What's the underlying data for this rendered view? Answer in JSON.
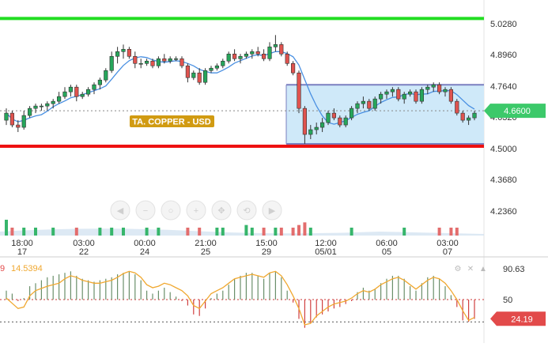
{
  "chart_data": {
    "type": "candlestick",
    "instrument_label": "TA. COPPER - USD",
    "colors": {
      "up": "#26a65b",
      "down": "#e0534f",
      "resistance_line": "#22dd22",
      "support_line": "#ee1111",
      "range_fill": "#cfe9f9",
      "range_border": "#7a7fc0",
      "ma_line": "#4a90e2",
      "label_bg": "#d19b12",
      "price_badge": "#3cc96a",
      "osc_line": "#f0a830",
      "osc_badge": "#e24a4a",
      "osc_up_bar": "#6a8f6a",
      "osc_down_bar": "#d04040"
    },
    "price_axis": {
      "ticks": [
        "5.0280",
        "4.8960",
        "4.7640",
        "4.6320",
        "4.5000",
        "4.3680",
        "4.2360"
      ],
      "tick_values": [
        5.028,
        4.896,
        4.764,
        4.632,
        4.5,
        4.368,
        4.236
      ],
      "current_price": "4.6600",
      "current_value": 4.66
    },
    "time_axis": [
      {
        "time": "18:00",
        "date": "17"
      },
      {
        "time": "03:00",
        "date": "22"
      },
      {
        "time": "00:00",
        "date": "24"
      },
      {
        "time": "21:00",
        "date": "25"
      },
      {
        "time": "15:00",
        "date": "29"
      },
      {
        "time": "12:00",
        "date": "05/01"
      },
      {
        "time": "06:00",
        "date": "05"
      },
      {
        "time": "03:00",
        "date": "07"
      }
    ],
    "horizontal_levels": {
      "resistance": 5.05,
      "support": 4.51
    },
    "range_box": {
      "top": 4.77,
      "bottom": 4.52
    },
    "ohlc": [
      [
        4.62,
        4.67,
        4.6,
        4.65
      ],
      [
        4.65,
        4.66,
        4.59,
        4.6
      ],
      [
        4.6,
        4.62,
        4.57,
        4.59
      ],
      [
        4.59,
        4.66,
        4.58,
        4.64
      ],
      [
        4.64,
        4.68,
        4.63,
        4.67
      ],
      [
        4.67,
        4.69,
        4.65,
        4.68
      ],
      [
        4.68,
        4.69,
        4.66,
        4.68
      ],
      [
        4.68,
        4.7,
        4.66,
        4.69
      ],
      [
        4.69,
        4.71,
        4.67,
        4.7
      ],
      [
        4.7,
        4.74,
        4.69,
        4.72
      ],
      [
        4.72,
        4.76,
        4.71,
        4.74
      ],
      [
        4.74,
        4.77,
        4.72,
        4.76
      ],
      [
        4.76,
        4.77,
        4.7,
        4.72
      ],
      [
        4.72,
        4.74,
        4.71,
        4.73
      ],
      [
        4.73,
        4.76,
        4.72,
        4.75
      ],
      [
        4.75,
        4.78,
        4.73,
        4.77
      ],
      [
        4.77,
        4.8,
        4.75,
        4.79
      ],
      [
        4.79,
        4.84,
        4.78,
        4.83
      ],
      [
        4.83,
        4.91,
        4.82,
        4.89
      ],
      [
        4.89,
        4.93,
        4.86,
        4.91
      ],
      [
        4.91,
        4.94,
        4.88,
        4.92
      ],
      [
        4.92,
        4.93,
        4.88,
        4.89
      ],
      [
        4.89,
        4.91,
        4.84,
        4.86
      ],
      [
        4.86,
        4.88,
        4.84,
        4.86
      ],
      [
        4.86,
        4.88,
        4.85,
        4.87
      ],
      [
        4.87,
        4.88,
        4.84,
        4.85
      ],
      [
        4.85,
        4.89,
        4.84,
        4.88
      ],
      [
        4.88,
        4.9,
        4.86,
        4.87
      ],
      [
        4.87,
        4.89,
        4.86,
        4.88
      ],
      [
        4.88,
        4.89,
        4.87,
        4.88
      ],
      [
        4.88,
        4.89,
        4.84,
        4.85
      ],
      [
        4.85,
        4.86,
        4.78,
        4.8
      ],
      [
        4.8,
        4.83,
        4.79,
        4.82
      ],
      [
        4.82,
        4.84,
        4.77,
        4.78
      ],
      [
        4.78,
        4.84,
        4.77,
        4.83
      ],
      [
        4.83,
        4.85,
        4.82,
        4.84
      ],
      [
        4.84,
        4.86,
        4.83,
        4.85
      ],
      [
        4.85,
        4.88,
        4.84,
        4.87
      ],
      [
        4.87,
        4.91,
        4.86,
        4.9
      ],
      [
        4.9,
        4.92,
        4.87,
        4.88
      ],
      [
        4.88,
        4.9,
        4.86,
        4.89
      ],
      [
        4.89,
        4.91,
        4.88,
        4.9
      ],
      [
        4.9,
        4.92,
        4.88,
        4.91
      ],
      [
        4.91,
        4.93,
        4.89,
        4.9
      ],
      [
        4.9,
        4.92,
        4.87,
        4.88
      ],
      [
        4.88,
        4.95,
        4.87,
        4.93
      ],
      [
        4.93,
        4.98,
        4.91,
        4.94
      ],
      [
        4.94,
        4.95,
        4.89,
        4.9
      ],
      [
        4.9,
        4.91,
        4.85,
        4.86
      ],
      [
        4.86,
        4.87,
        4.81,
        4.82
      ],
      [
        4.82,
        4.83,
        4.65,
        4.67
      ],
      [
        4.67,
        4.68,
        4.52,
        4.56
      ],
      [
        4.56,
        4.6,
        4.54,
        4.58
      ],
      [
        4.58,
        4.61,
        4.56,
        4.59
      ],
      [
        4.59,
        4.63,
        4.57,
        4.61
      ],
      [
        4.61,
        4.66,
        4.6,
        4.65
      ],
      [
        4.65,
        4.67,
        4.62,
        4.63
      ],
      [
        4.63,
        4.64,
        4.59,
        4.6
      ],
      [
        4.6,
        4.64,
        4.59,
        4.63
      ],
      [
        4.63,
        4.68,
        4.62,
        4.67
      ],
      [
        4.67,
        4.7,
        4.65,
        4.69
      ],
      [
        4.69,
        4.72,
        4.67,
        4.7
      ],
      [
        4.7,
        4.71,
        4.66,
        4.67
      ],
      [
        4.67,
        4.72,
        4.66,
        4.71
      ],
      [
        4.71,
        4.74,
        4.69,
        4.73
      ],
      [
        4.73,
        4.75,
        4.71,
        4.74
      ],
      [
        4.74,
        4.76,
        4.72,
        4.75
      ],
      [
        4.75,
        4.76,
        4.7,
        4.71
      ],
      [
        4.71,
        4.74,
        4.69,
        4.73
      ],
      [
        4.73,
        4.75,
        4.72,
        4.74
      ],
      [
        4.74,
        4.75,
        4.69,
        4.7
      ],
      [
        4.7,
        4.76,
        4.69,
        4.75
      ],
      [
        4.75,
        4.77,
        4.73,
        4.76
      ],
      [
        4.76,
        4.78,
        4.74,
        4.77
      ],
      [
        4.77,
        4.78,
        4.73,
        4.74
      ],
      [
        4.74,
        4.76,
        4.72,
        4.75
      ],
      [
        4.75,
        4.76,
        4.69,
        4.7
      ],
      [
        4.7,
        4.71,
        4.64,
        4.65
      ],
      [
        4.65,
        4.66,
        4.61,
        4.62
      ],
      [
        4.62,
        4.64,
        4.6,
        4.63
      ],
      [
        4.63,
        4.66,
        4.62,
        4.65
      ]
    ],
    "volume": [
      6,
      3,
      2,
      3,
      2,
      3,
      2,
      2,
      3,
      2,
      2,
      2,
      3,
      2,
      2,
      2,
      3,
      2,
      3,
      2,
      3,
      2,
      2,
      2,
      3,
      2,
      3,
      2,
      2,
      2,
      2,
      3,
      2,
      3,
      2,
      2,
      3,
      3,
      2,
      2,
      2,
      4,
      3,
      2,
      3,
      2,
      3,
      3,
      2,
      3,
      4,
      5,
      3,
      2,
      2,
      2,
      2,
      2,
      2,
      3,
      2,
      2,
      2,
      2,
      2,
      2,
      2,
      2,
      3,
      2,
      2,
      2,
      2,
      2,
      3,
      2,
      3,
      3,
      2,
      2,
      2
    ],
    "oscillator": {
      "label_left": "9",
      "label_value": "14.5394",
      "axis_ticks": [
        "90.63",
        "50"
      ],
      "current_badge": "24.19",
      "max": 100,
      "line": [
        52,
        45,
        38,
        40,
        55,
        62,
        65,
        68,
        70,
        72,
        78,
        82,
        80,
        76,
        74,
        72,
        72,
        74,
        76,
        80,
        85,
        88,
        86,
        80,
        70,
        66,
        68,
        72,
        70,
        66,
        62,
        55,
        42,
        38,
        48,
        58,
        62,
        66,
        72,
        78,
        80,
        82,
        84,
        82,
        80,
        86,
        88,
        82,
        70,
        55,
        38,
        16,
        18,
        28,
        34,
        40,
        44,
        46,
        48,
        52,
        58,
        62,
        60,
        64,
        70,
        74,
        78,
        80,
        76,
        70,
        64,
        70,
        76,
        80,
        78,
        72,
        62,
        50,
        35,
        22,
        26
      ],
      "bars": [
        62,
        58,
        48,
        52,
        68,
        72,
        76,
        80,
        82,
        84,
        86,
        88,
        82,
        78,
        76,
        74,
        76,
        78,
        80,
        84,
        86,
        88,
        84,
        76,
        62,
        58,
        62,
        66,
        60,
        54,
        48,
        42,
        30,
        28,
        38,
        52,
        58,
        62,
        70,
        78,
        82,
        86,
        86,
        82,
        78,
        86,
        88,
        80,
        62,
        46,
        24,
        12,
        18,
        26,
        30,
        34,
        38,
        40,
        44,
        48,
        60,
        66,
        62,
        64,
        72,
        78,
        82,
        82,
        78,
        68,
        62,
        72,
        80,
        82,
        78,
        68,
        56,
        40,
        22,
        20,
        24
      ]
    }
  }
}
